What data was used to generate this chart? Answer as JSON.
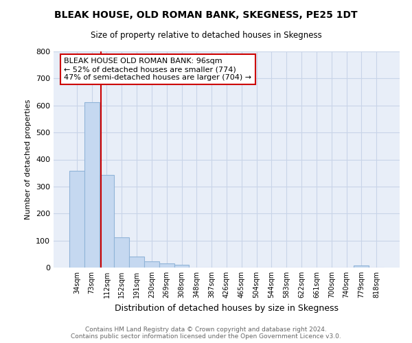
{
  "title": "BLEAK HOUSE, OLD ROMAN BANK, SKEGNESS, PE25 1DT",
  "subtitle": "Size of property relative to detached houses in Skegness",
  "xlabel": "Distribution of detached houses by size in Skegness",
  "ylabel": "Number of detached properties",
  "bar_color": "#c5d8f0",
  "bar_edge_color": "#90b4d8",
  "categories": [
    "34sqm",
    "73sqm",
    "112sqm",
    "152sqm",
    "191sqm",
    "230sqm",
    "269sqm",
    "308sqm",
    "348sqm",
    "387sqm",
    "426sqm",
    "465sqm",
    "504sqm",
    "544sqm",
    "583sqm",
    "622sqm",
    "661sqm",
    "700sqm",
    "740sqm",
    "779sqm",
    "818sqm"
  ],
  "values": [
    358,
    612,
    342,
    113,
    40,
    22,
    15,
    10,
    0,
    0,
    0,
    0,
    0,
    0,
    0,
    0,
    0,
    0,
    0,
    8,
    0
  ],
  "vline_color": "#cc0000",
  "annotation_text": "BLEAK HOUSE OLD ROMAN BANK: 96sqm\n← 52% of detached houses are smaller (774)\n47% of semi-detached houses are larger (704) →",
  "annotation_box_color": "#ffffff",
  "annotation_box_edge_color": "#cc0000",
  "footnote": "Contains HM Land Registry data © Crown copyright and database right 2024.\nContains public sector information licensed under the Open Government Licence v3.0.",
  "ylim": [
    0,
    800
  ],
  "yticks": [
    0,
    100,
    200,
    300,
    400,
    500,
    600,
    700,
    800
  ],
  "grid_color": "#c8d4e8",
  "background_color": "#e8eef8"
}
